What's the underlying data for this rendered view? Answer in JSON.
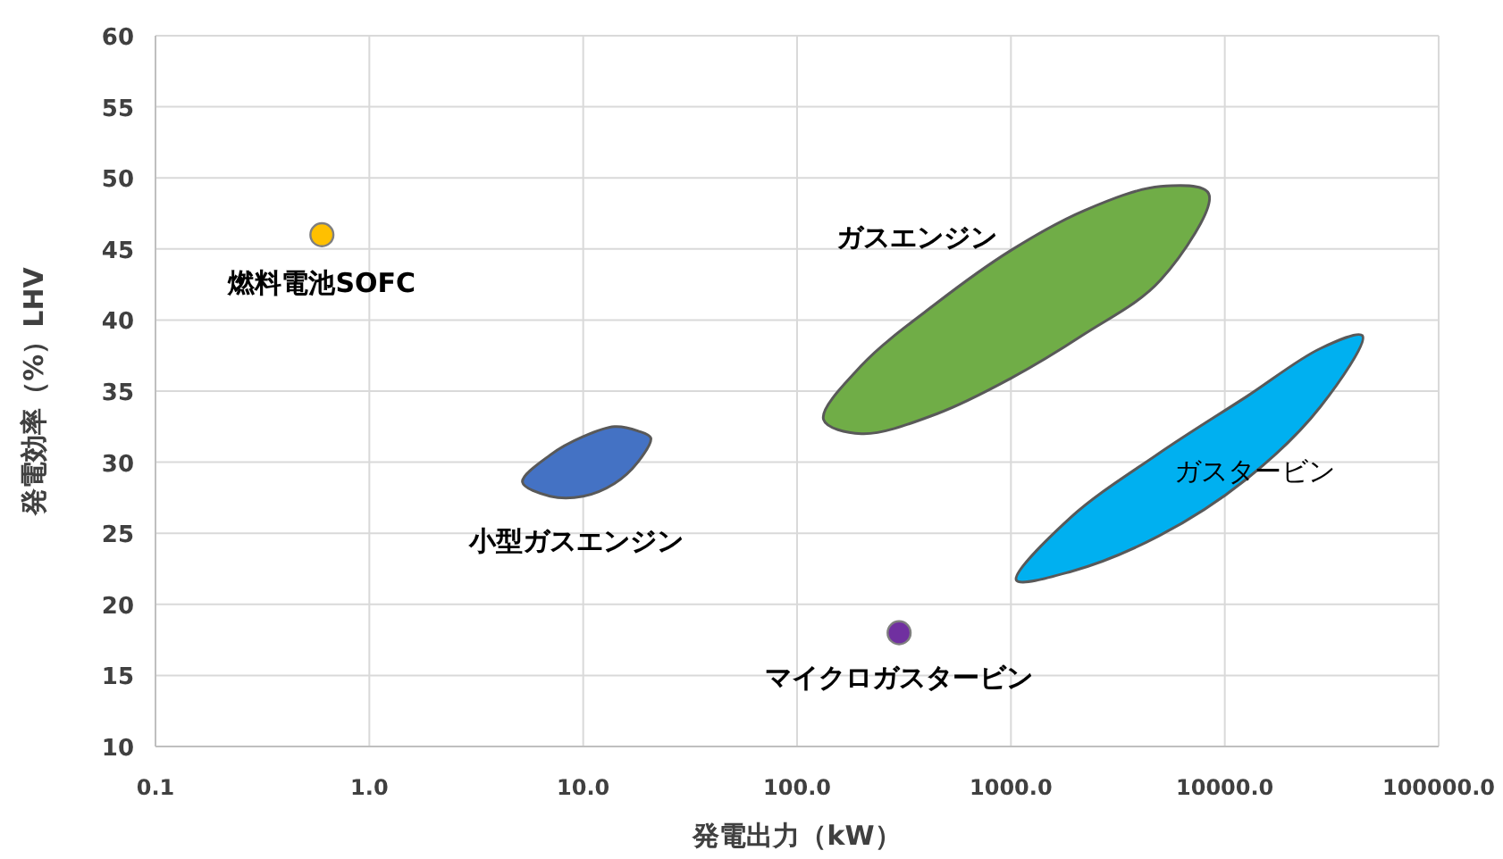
{
  "chart_data": {
    "type": "scatter",
    "xlabel": "発電出力（kW）",
    "ylabel": "発電効率（%）LHV",
    "log": "x",
    "grid": true,
    "xlim": [
      0.1,
      100000
    ],
    "xticks": [
      0.1,
      {
        "value": 1,
        "label": "1.0"
      },
      {
        "value": 10,
        "label": "10.0"
      },
      {
        "value": 100,
        "label": "100.0"
      },
      {
        "value": 1000,
        "label": "1000.0"
      },
      {
        "value": 10000,
        "label": "10000.0"
      },
      {
        "value": 100000,
        "label": "100000.0"
      }
    ],
    "ylim": [
      10,
      60
    ],
    "yticks": [
      10,
      15,
      20,
      25,
      30,
      35,
      40,
      45,
      50,
      55,
      60
    ],
    "series": [
      {
        "name": "燃料電池SOFC",
        "marker": "circle",
        "color": "#ffc000",
        "x": [
          0.6
        ],
        "values": [
          46
        ]
      },
      {
        "name": "小型ガスエンジン",
        "type": "area",
        "color": "#4472c4",
        "x": [
          5.2,
          7,
          10,
          14,
          18,
          20.7,
          18,
          14,
          10,
          7
        ],
        "values": [
          28.6,
          30.5,
          31.8,
          32.5,
          32.2,
          31.7,
          30,
          28.5,
          27.6,
          27.6
        ]
      },
      {
        "name": "ガスエンジン",
        "type": "area",
        "color": "#70ad47",
        "x": [
          133,
          200,
          450,
          1000,
          2200,
          5000,
          8400,
          5000,
          2200,
          1000,
          450,
          200
        ],
        "values": [
          33,
          36.8,
          41.2,
          44.9,
          47.7,
          49.4,
          48.9,
          42.8,
          39,
          35.9,
          33.4,
          32
        ]
      },
      {
        "name": "ガスタービン",
        "type": "area",
        "color": "#00b0f0",
        "x": [
          1060,
          1900,
          4900,
          12600,
          28000,
          44000,
          28000,
          12600,
          4900,
          1900
        ],
        "values": [
          21.7,
          26.1,
          30.6,
          34.6,
          38,
          38.9,
          33.9,
          28.8,
          24.8,
          22.3
        ]
      },
      {
        "name": "マイクロガスタービン",
        "marker": "circle",
        "color": "#7030a0",
        "x": [
          300
        ],
        "values": [
          18
        ]
      }
    ]
  }
}
